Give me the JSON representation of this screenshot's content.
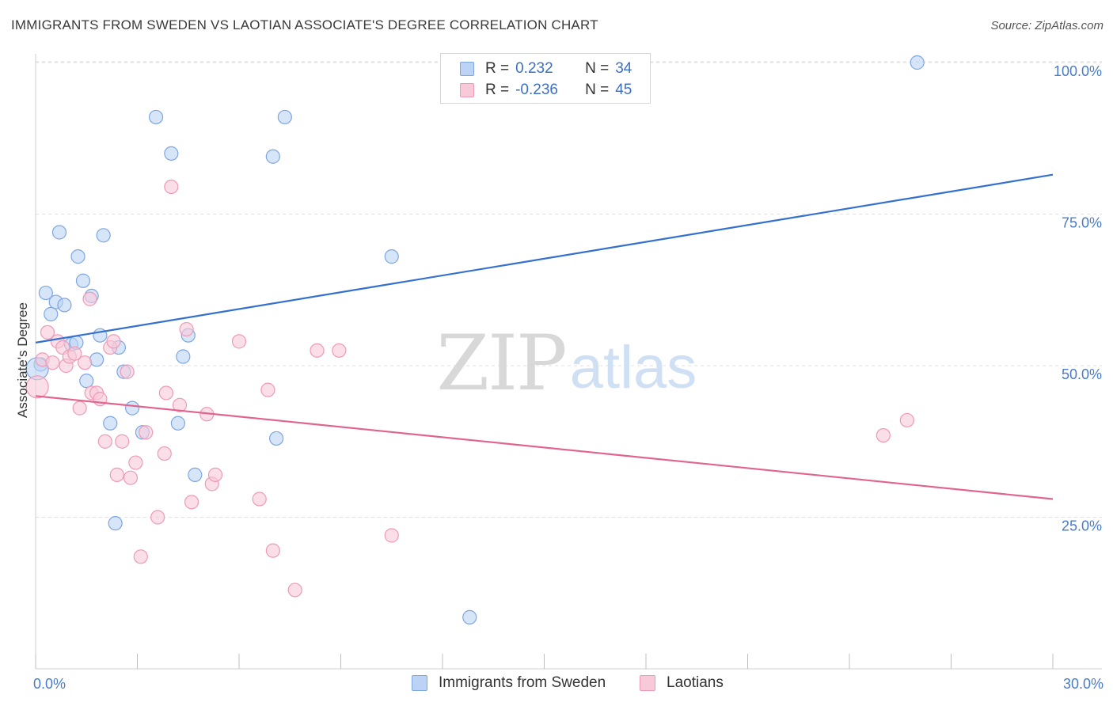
{
  "title": "IMMIGRANTS FROM SWEDEN VS LAOTIAN ASSOCIATE'S DEGREE CORRELATION CHART",
  "source": "Source: ZipAtlas.com",
  "watermark": {
    "zip": "ZIP",
    "atlas": "atlas"
  },
  "colors": {
    "blue_fill": "#bcd3f5",
    "blue_stroke": "#7ea6e0",
    "blue_line": "#3470cf",
    "pink_fill": "#f8c9d8",
    "pink_stroke": "#ee9ab6",
    "pink_line": "#e0648e",
    "tick_text": "#4a7bc8",
    "grid": "#e2e2e2"
  },
  "legend": {
    "rows": [
      {
        "r_label": "R =",
        "r_value": "0.232",
        "n_label": "N =",
        "n_value": "34",
        "color": "#bcd3f5",
        "stroke": "#7ea6e0"
      },
      {
        "r_label": "R =",
        "r_value": "-0.236",
        "n_label": "N =",
        "n_value": "45",
        "color": "#f8c9d8",
        "stroke": "#ee9ab6"
      }
    ]
  },
  "chart_data": {
    "type": "scatter",
    "title": "IMMIGRANTS FROM SWEDEN VS LAOTIAN ASSOCIATE'S DEGREE CORRELATION CHART",
    "xlabel": "",
    "ylabel": "Associate's Degree",
    "xlim": [
      0,
      30
    ],
    "ylim": [
      0,
      100
    ],
    "x_tick_labels": [
      "0.0%",
      "30.0%"
    ],
    "y_ticks": [
      25,
      50,
      75,
      100
    ],
    "y_tick_labels": [
      "25.0%",
      "50.0%",
      "75.0%",
      "100.0%"
    ],
    "grid": true,
    "legend_placement": "bottom-center",
    "series": [
      {
        "name": "Immigrants from Sweden",
        "trend": {
          "x": [
            0,
            30
          ],
          "y": [
            53.8,
            81.5
          ]
        },
        "points": [
          {
            "x": 0.15,
            "y": 50.2
          },
          {
            "x": 0.3,
            "y": 62
          },
          {
            "x": 0.45,
            "y": 58.5
          },
          {
            "x": 0.6,
            "y": 60.5
          },
          {
            "x": 0.7,
            "y": 72
          },
          {
            "x": 0.85,
            "y": 60
          },
          {
            "x": 1.05,
            "y": 53.5
          },
          {
            "x": 1.2,
            "y": 53.8
          },
          {
            "x": 1.25,
            "y": 68
          },
          {
            "x": 1.4,
            "y": 64
          },
          {
            "x": 1.5,
            "y": 47.5
          },
          {
            "x": 1.65,
            "y": 61.5
          },
          {
            "x": 1.8,
            "y": 51
          },
          {
            "x": 1.9,
            "y": 55
          },
          {
            "x": 2.0,
            "y": 71.5
          },
          {
            "x": 2.2,
            "y": 40.5
          },
          {
            "x": 2.35,
            "y": 24
          },
          {
            "x": 2.45,
            "y": 53
          },
          {
            "x": 2.6,
            "y": 49
          },
          {
            "x": 2.85,
            "y": 43
          },
          {
            "x": 3.15,
            "y": 39
          },
          {
            "x": 3.55,
            "y": 91
          },
          {
            "x": 4.0,
            "y": 85
          },
          {
            "x": 4.2,
            "y": 40.5
          },
          {
            "x": 4.35,
            "y": 51.5
          },
          {
            "x": 4.5,
            "y": 55
          },
          {
            "x": 4.7,
            "y": 32
          },
          {
            "x": 7.0,
            "y": 84.5
          },
          {
            "x": 7.1,
            "y": 38
          },
          {
            "x": 7.35,
            "y": 91
          },
          {
            "x": 10.5,
            "y": 68
          },
          {
            "x": 12.8,
            "y": 8.5
          },
          {
            "x": 26.0,
            "y": 100
          },
          {
            "x": 0.05,
            "y": 49.5
          }
        ]
      },
      {
        "name": "Laotians",
        "trend": {
          "x": [
            0,
            30
          ],
          "y": [
            45,
            28
          ]
        },
        "points": [
          {
            "x": 0.05,
            "y": 46.5
          },
          {
            "x": 0.2,
            "y": 51
          },
          {
            "x": 0.35,
            "y": 55.5
          },
          {
            "x": 0.5,
            "y": 50.5
          },
          {
            "x": 0.65,
            "y": 54
          },
          {
            "x": 0.8,
            "y": 53
          },
          {
            "x": 0.9,
            "y": 50
          },
          {
            "x": 1.0,
            "y": 51.5
          },
          {
            "x": 1.15,
            "y": 52
          },
          {
            "x": 1.3,
            "y": 43
          },
          {
            "x": 1.45,
            "y": 50.5
          },
          {
            "x": 1.6,
            "y": 61
          },
          {
            "x": 1.65,
            "y": 45.5
          },
          {
            "x": 1.8,
            "y": 45.5
          },
          {
            "x": 1.9,
            "y": 44.5
          },
          {
            "x": 2.05,
            "y": 37.5
          },
          {
            "x": 2.2,
            "y": 53
          },
          {
            "x": 2.3,
            "y": 54
          },
          {
            "x": 2.4,
            "y": 32
          },
          {
            "x": 2.55,
            "y": 37.5
          },
          {
            "x": 2.7,
            "y": 49
          },
          {
            "x": 2.8,
            "y": 31.5
          },
          {
            "x": 2.95,
            "y": 34
          },
          {
            "x": 3.1,
            "y": 18.5
          },
          {
            "x": 3.25,
            "y": 39
          },
          {
            "x": 3.6,
            "y": 25
          },
          {
            "x": 3.8,
            "y": 35.5
          },
          {
            "x": 3.85,
            "y": 45.5
          },
          {
            "x": 4.0,
            "y": 79.5
          },
          {
            "x": 4.25,
            "y": 43.5
          },
          {
            "x": 4.45,
            "y": 56
          },
          {
            "x": 4.6,
            "y": 27.5
          },
          {
            "x": 5.05,
            "y": 42
          },
          {
            "x": 5.2,
            "y": 30.5
          },
          {
            "x": 5.3,
            "y": 32
          },
          {
            "x": 6.0,
            "y": 54
          },
          {
            "x": 6.6,
            "y": 28
          },
          {
            "x": 6.85,
            "y": 46
          },
          {
            "x": 7.0,
            "y": 19.5
          },
          {
            "x": 7.65,
            "y": 13
          },
          {
            "x": 8.3,
            "y": 52.5
          },
          {
            "x": 8.95,
            "y": 52.5
          },
          {
            "x": 10.5,
            "y": 22
          },
          {
            "x": 25.0,
            "y": 38.5
          },
          {
            "x": 25.7,
            "y": 41
          }
        ]
      }
    ]
  }
}
